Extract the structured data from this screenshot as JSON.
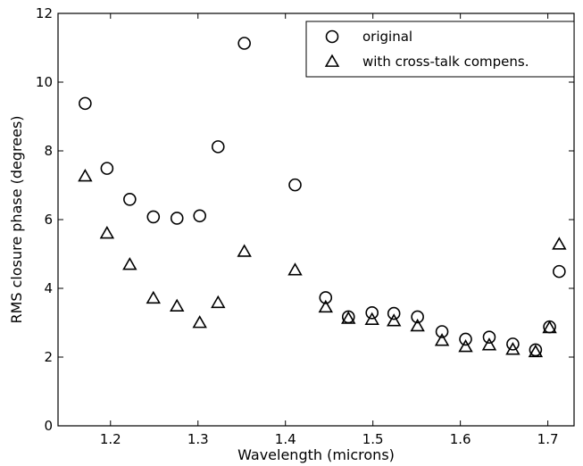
{
  "chart_data": {
    "type": "scatter",
    "title": "",
    "xlabel": "Wavelength (microns)",
    "ylabel": "RMS closure phase (degrees)",
    "xlim": [
      1.14,
      1.73
    ],
    "ylim": [
      0,
      12
    ],
    "x_ticks": [
      1.2,
      1.3,
      1.4,
      1.5,
      1.6,
      1.7
    ],
    "x_tick_labels": [
      "1.2",
      "1.3",
      "1.4",
      "1.5",
      "1.6",
      "1.7"
    ],
    "y_ticks": [
      0,
      2,
      4,
      6,
      8,
      10,
      12
    ],
    "y_tick_labels": [
      "0",
      "2",
      "4",
      "6",
      "8",
      "10",
      "12"
    ],
    "grid": false,
    "legend_position": "top-right",
    "series": [
      {
        "name": "original",
        "marker": "circle",
        "points": [
          [
            1.171,
            9.38
          ],
          [
            1.196,
            7.49
          ],
          [
            1.222,
            6.59
          ],
          [
            1.249,
            6.08
          ],
          [
            1.276,
            6.04
          ],
          [
            1.302,
            6.11
          ],
          [
            1.323,
            8.12
          ],
          [
            1.353,
            11.13
          ],
          [
            1.411,
            7.01
          ],
          [
            1.446,
            3.73
          ],
          [
            1.472,
            3.17
          ],
          [
            1.499,
            3.29
          ],
          [
            1.524,
            3.27
          ],
          [
            1.551,
            3.17
          ],
          [
            1.579,
            2.74
          ],
          [
            1.606,
            2.52
          ],
          [
            1.633,
            2.58
          ],
          [
            1.66,
            2.38
          ],
          [
            1.686,
            2.21
          ],
          [
            1.702,
            2.88
          ],
          [
            1.713,
            4.49
          ]
        ]
      },
      {
        "name": "with cross-talk compens.",
        "marker": "triangle",
        "points": [
          [
            1.171,
            7.26
          ],
          [
            1.196,
            5.6
          ],
          [
            1.222,
            4.69
          ],
          [
            1.249,
            3.71
          ],
          [
            1.276,
            3.48
          ],
          [
            1.302,
            3.0
          ],
          [
            1.323,
            3.58
          ],
          [
            1.353,
            5.07
          ],
          [
            1.411,
            4.53
          ],
          [
            1.446,
            3.45
          ],
          [
            1.472,
            3.12
          ],
          [
            1.499,
            3.09
          ],
          [
            1.524,
            3.05
          ],
          [
            1.551,
            2.9
          ],
          [
            1.579,
            2.48
          ],
          [
            1.606,
            2.3
          ],
          [
            1.633,
            2.35
          ],
          [
            1.66,
            2.22
          ],
          [
            1.686,
            2.15
          ],
          [
            1.702,
            2.85
          ],
          [
            1.713,
            5.28
          ]
        ]
      }
    ]
  }
}
